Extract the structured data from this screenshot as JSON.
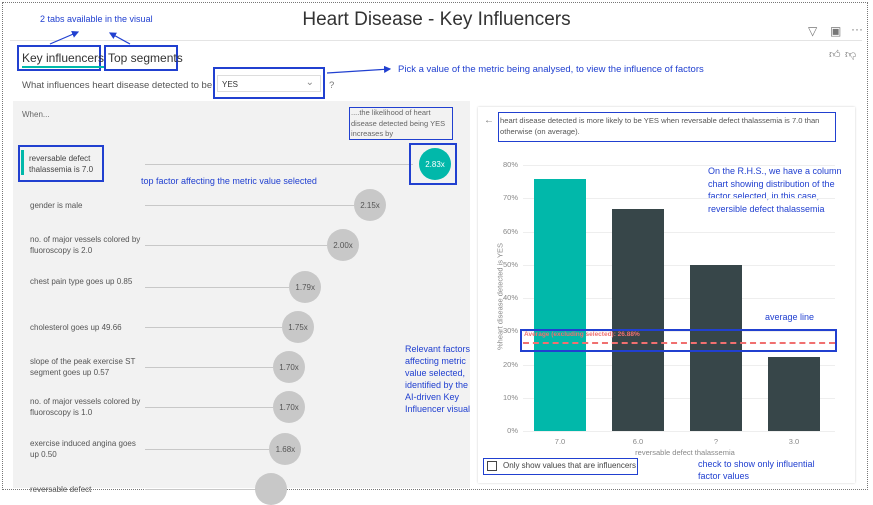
{
  "title": "Heart Disease - Key Influencers",
  "tabs": [
    {
      "label": "Key influencers",
      "active": true
    },
    {
      "label": "Top segments",
      "active": false
    }
  ],
  "question": {
    "prefix": "What influences heart disease detected to be",
    "value": "YES",
    "suffix": "?"
  },
  "left": {
    "when": "When...",
    "likelihood": "....the likelihood of heart disease detected being YES increases by",
    "top_factor": {
      "label": "reversable defect thalassemia is 7.0",
      "value": "2.83x"
    },
    "factors": [
      {
        "label": "gender is male",
        "value": "2.15x"
      },
      {
        "label": "no. of major vessels colored by fluoroscopy is 2.0",
        "value": "2.00x"
      },
      {
        "label": "chest pain type goes up 0.85",
        "value": "1.79x"
      },
      {
        "label": "cholesterol goes up 49.66",
        "value": "1.75x"
      },
      {
        "label": "slope of the peak exercise ST segment goes up 0.57",
        "value": "1.70x"
      },
      {
        "label": "no. of major vessels colored by fluoroscopy is 1.0",
        "value": "1.70x"
      },
      {
        "label": "exercise induced angina goes up 0.50",
        "value": "1.68x"
      },
      {
        "label": "reversable defect",
        "value": ""
      }
    ]
  },
  "right": {
    "description": "heart disease detected is more likely to be YES when reversable defect thalassemia is 7.0 than otherwise (on average).",
    "checkbox_label": "Only show values that are influencers",
    "checkbox_checked": false
  },
  "chart_data": {
    "type": "bar",
    "categories": [
      "7.0",
      "6.0",
      "?",
      "3.0"
    ],
    "values": [
      75.8,
      66.7,
      50,
      22.3
    ],
    "highlight": "7.0",
    "colors": {
      "highlight": "#01b8aa",
      "other": "#374649",
      "average": "#f07070"
    },
    "xlabel": "reversable defect thalassemia",
    "ylabel": "%heart disease detected is YES",
    "ylim": [
      0,
      80
    ],
    "yticks": [
      "0%",
      "10%",
      "20%",
      "30%",
      "40%",
      "50%",
      "60%",
      "70%",
      "80%"
    ],
    "average": {
      "value": 26.88,
      "label": "Average (excluding selected): 26.88%"
    },
    "grid": true
  },
  "annotations": {
    "tabs": "2 tabs available in the visual",
    "pick": "Pick a value of the metric being analysed, to view the influence of factors",
    "top": "top factor affecting the metric value selected",
    "relevant": "Relevant factors affecting metric value selected, identified by the AI-driven Key Influencer visual",
    "rhs": "On the R.H.S., we have a column chart showing distribution of the factor selected, in this case, reversible defect thalassemia",
    "avg": "average line",
    "check": "check to show only influential factor values"
  },
  "icons": [
    "filter-icon",
    "focus-mode-icon",
    "more-options-icon",
    "thumbs-up-icon",
    "thumbs-down-icon",
    "chevron-down-icon",
    "back-arrow-icon"
  ]
}
